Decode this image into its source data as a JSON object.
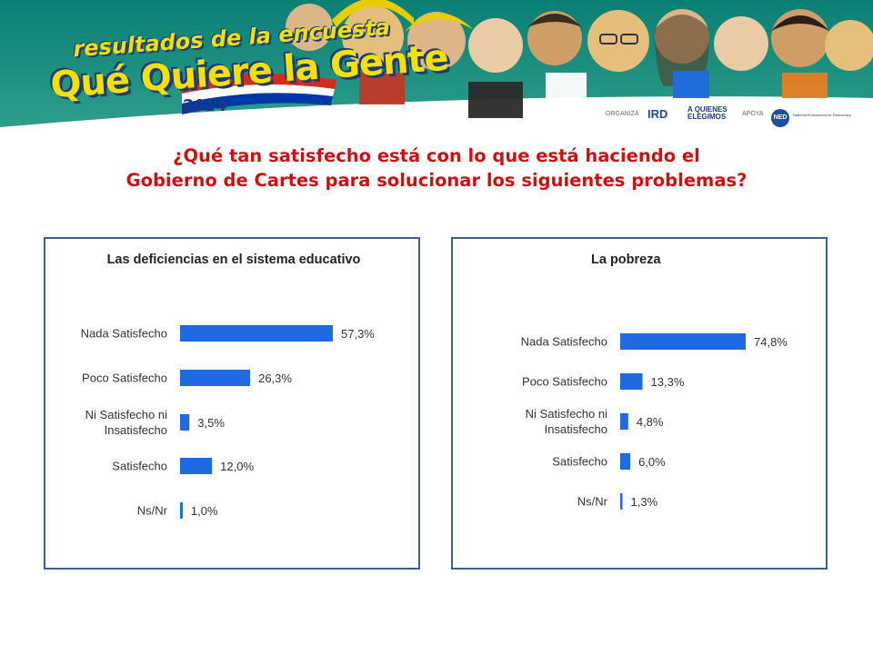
{
  "header": {
    "logo_line1": "resultados de la encuesta",
    "logo_line2": "Qué Quiere la Gente",
    "logo_year": "2014",
    "organiza_label": "ORGANIZA",
    "ird_logo": "IRD",
    "aqe_logo_line1": "A QUIENES",
    "aqe_logo_line2": "ELEGIMOS",
    "apoya_label": "APOYA",
    "ned_logo": "NED",
    "ned_text": "National Endowment for Democracy",
    "colors": {
      "banner_top": "#0a7f74",
      "banner_bottom": "#2d9e8a",
      "logo_yellow": "#f5e100",
      "logo_blue": "#1b3a7a"
    }
  },
  "title": {
    "line1": "¿Qué tan satisfecho está con lo que está haciendo el",
    "line2": "Gobierno de Cartes para solucionar los siguientes problemas?",
    "color": "#d01010"
  },
  "chart_data": [
    {
      "type": "bar",
      "orientation": "horizontal",
      "title": "Las deficiencias en el sistema educativo",
      "categories": [
        [
          "Nada Satisfecho"
        ],
        [
          "Poco Satisfecho"
        ],
        [
          "Ni Satisfecho ni",
          "Insatisfecho"
        ],
        [
          "Satisfecho"
        ],
        [
          "Ns/Nr"
        ]
      ],
      "values": [
        57.3,
        26.3,
        3.5,
        12.0,
        1.0
      ],
      "value_labels": [
        "57,3%",
        "26,3%",
        "3,5%",
        "12,0%",
        "1,0%"
      ],
      "bar_color": "#1f6ae0",
      "xlim": [
        0,
        100
      ],
      "grid": false,
      "legend": "none"
    },
    {
      "type": "bar",
      "orientation": "horizontal",
      "title": "La pobreza",
      "categories": [
        [
          "Nada Satisfecho"
        ],
        [
          "Poco Satisfecho"
        ],
        [
          "Ni Satisfecho ni",
          "Insatisfecho"
        ],
        [
          "Satisfecho"
        ],
        [
          "Ns/Nr"
        ]
      ],
      "values": [
        74.8,
        13.3,
        4.8,
        6.0,
        1.3
      ],
      "value_labels": [
        "74,8%",
        "13,3%",
        "4,8%",
        "6,0%",
        "1,3%"
      ],
      "bar_color": "#1f6ae0",
      "xlim": [
        0,
        100
      ],
      "grid": false,
      "legend": "none"
    }
  ]
}
